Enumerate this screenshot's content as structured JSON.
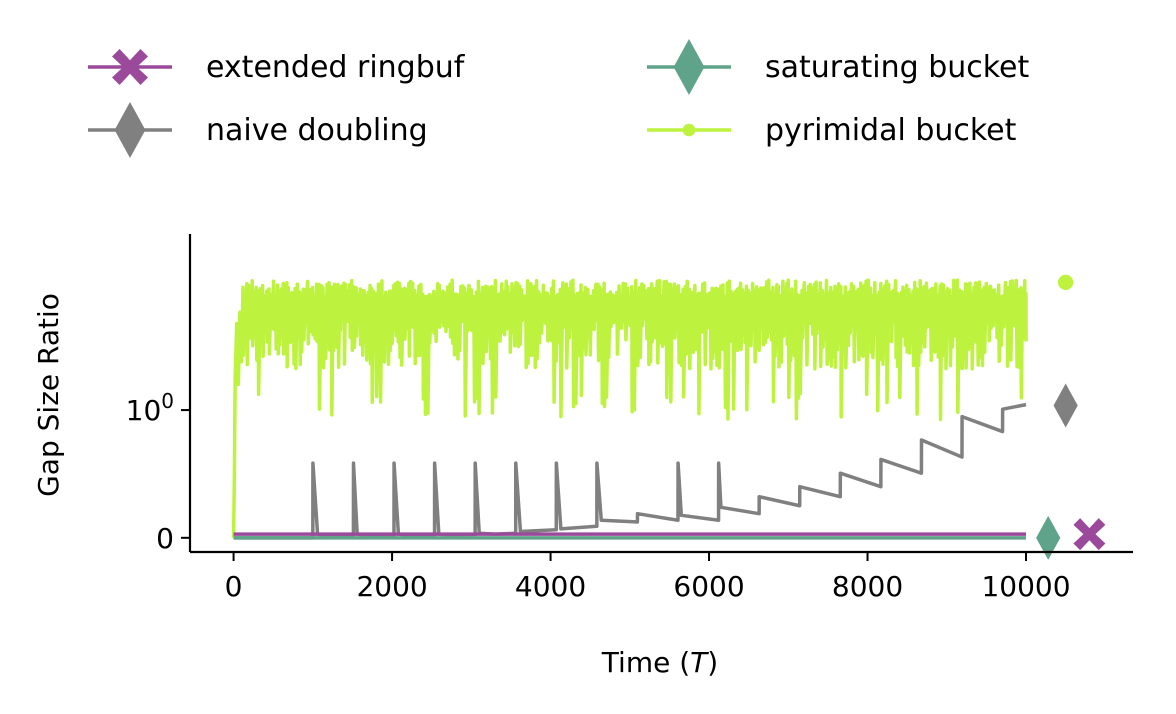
{
  "chart_data": {
    "type": "line",
    "title": "",
    "xlabel": "Time (T)",
    "xlabel_parts": [
      "Time (",
      "T",
      ")"
    ],
    "ylabel": "Gap Size Ratio",
    "yscale": "symlog",
    "xlim": [
      -550,
      11350
    ],
    "ylim": [
      -0.08,
      4.2
    ],
    "x_ticks": [
      0,
      2000,
      4000,
      6000,
      8000,
      10000
    ],
    "x_tick_labels": [
      "0",
      "2000",
      "4000",
      "6000",
      "8000",
      "10000"
    ],
    "y_ticks": [
      {
        "value": 0,
        "base": "0",
        "exp": ""
      },
      {
        "value": 1,
        "base": "10",
        "exp": "0"
      }
    ],
    "grid": false,
    "legend": {
      "placement": "top",
      "columns": 2
    },
    "series": [
      {
        "name": "extended ringbuf",
        "color": "#9b4a9b",
        "marker": "x-filled",
        "end_marker_x": 10800,
        "end_marker_y": 0.02,
        "points": [
          [
            0,
            0.02
          ],
          [
            10000,
            0.02
          ]
        ]
      },
      {
        "name": "naive doubling",
        "color": "#808080",
        "marker": "diamond",
        "end_marker_x": 10500,
        "end_marker_y": 1.05,
        "points": [
          [
            0,
            0.0
          ],
          [
            1000,
            0.0
          ],
          [
            1001,
            0.5
          ],
          [
            1060,
            0.02
          ],
          [
            1200,
            0.01
          ],
          [
            1512,
            0.01
          ],
          [
            1513,
            0.5
          ],
          [
            1560,
            0.02
          ],
          [
            1700,
            0.012
          ],
          [
            2024,
            0.012
          ],
          [
            2025,
            0.5
          ],
          [
            2080,
            0.02
          ],
          [
            2200,
            0.014
          ],
          [
            2536,
            0.014
          ],
          [
            2537,
            0.5
          ],
          [
            2590,
            0.02
          ],
          [
            2700,
            0.016
          ],
          [
            3048,
            0.018
          ],
          [
            3049,
            0.5
          ],
          [
            3100,
            0.025
          ],
          [
            3300,
            0.02
          ],
          [
            3560,
            0.025
          ],
          [
            3561,
            0.5
          ],
          [
            3620,
            0.035
          ],
          [
            4072,
            0.045
          ],
          [
            4073,
            0.5
          ],
          [
            4130,
            0.05
          ],
          [
            4584,
            0.065
          ],
          [
            4585,
            0.5
          ],
          [
            4640,
            0.1
          ],
          [
            5096,
            0.09
          ],
          [
            5097,
            0.14
          ],
          [
            5608,
            0.1
          ],
          [
            5609,
            0.5
          ],
          [
            5650,
            0.13
          ],
          [
            6120,
            0.1
          ],
          [
            6121,
            0.5
          ],
          [
            6150,
            0.18
          ],
          [
            6632,
            0.14
          ],
          [
            6633,
            0.25
          ],
          [
            7144,
            0.19
          ],
          [
            7145,
            0.32
          ],
          [
            7656,
            0.25
          ],
          [
            7657,
            0.42
          ],
          [
            8168,
            0.32
          ],
          [
            8169,
            0.53
          ],
          [
            8680,
            0.42
          ],
          [
            8681,
            0.7
          ],
          [
            9192,
            0.55
          ],
          [
            9193,
            0.93
          ],
          [
            9704,
            0.78
          ],
          [
            9705,
            1.01
          ],
          [
            10000,
            1.06
          ]
        ]
      },
      {
        "name": "saturating bucket",
        "color": "#5fa48a",
        "marker": "diamond",
        "end_marker_x": 10280,
        "end_marker_y": 0.0,
        "points": [
          [
            0,
            0.0
          ],
          [
            10000,
            0.0
          ]
        ]
      },
      {
        "name": "pyrimidal bucket",
        "color": "#bdf23e",
        "marker": "dot",
        "end_marker_x": 10500,
        "end_marker_y": 3.0
      }
    ]
  }
}
